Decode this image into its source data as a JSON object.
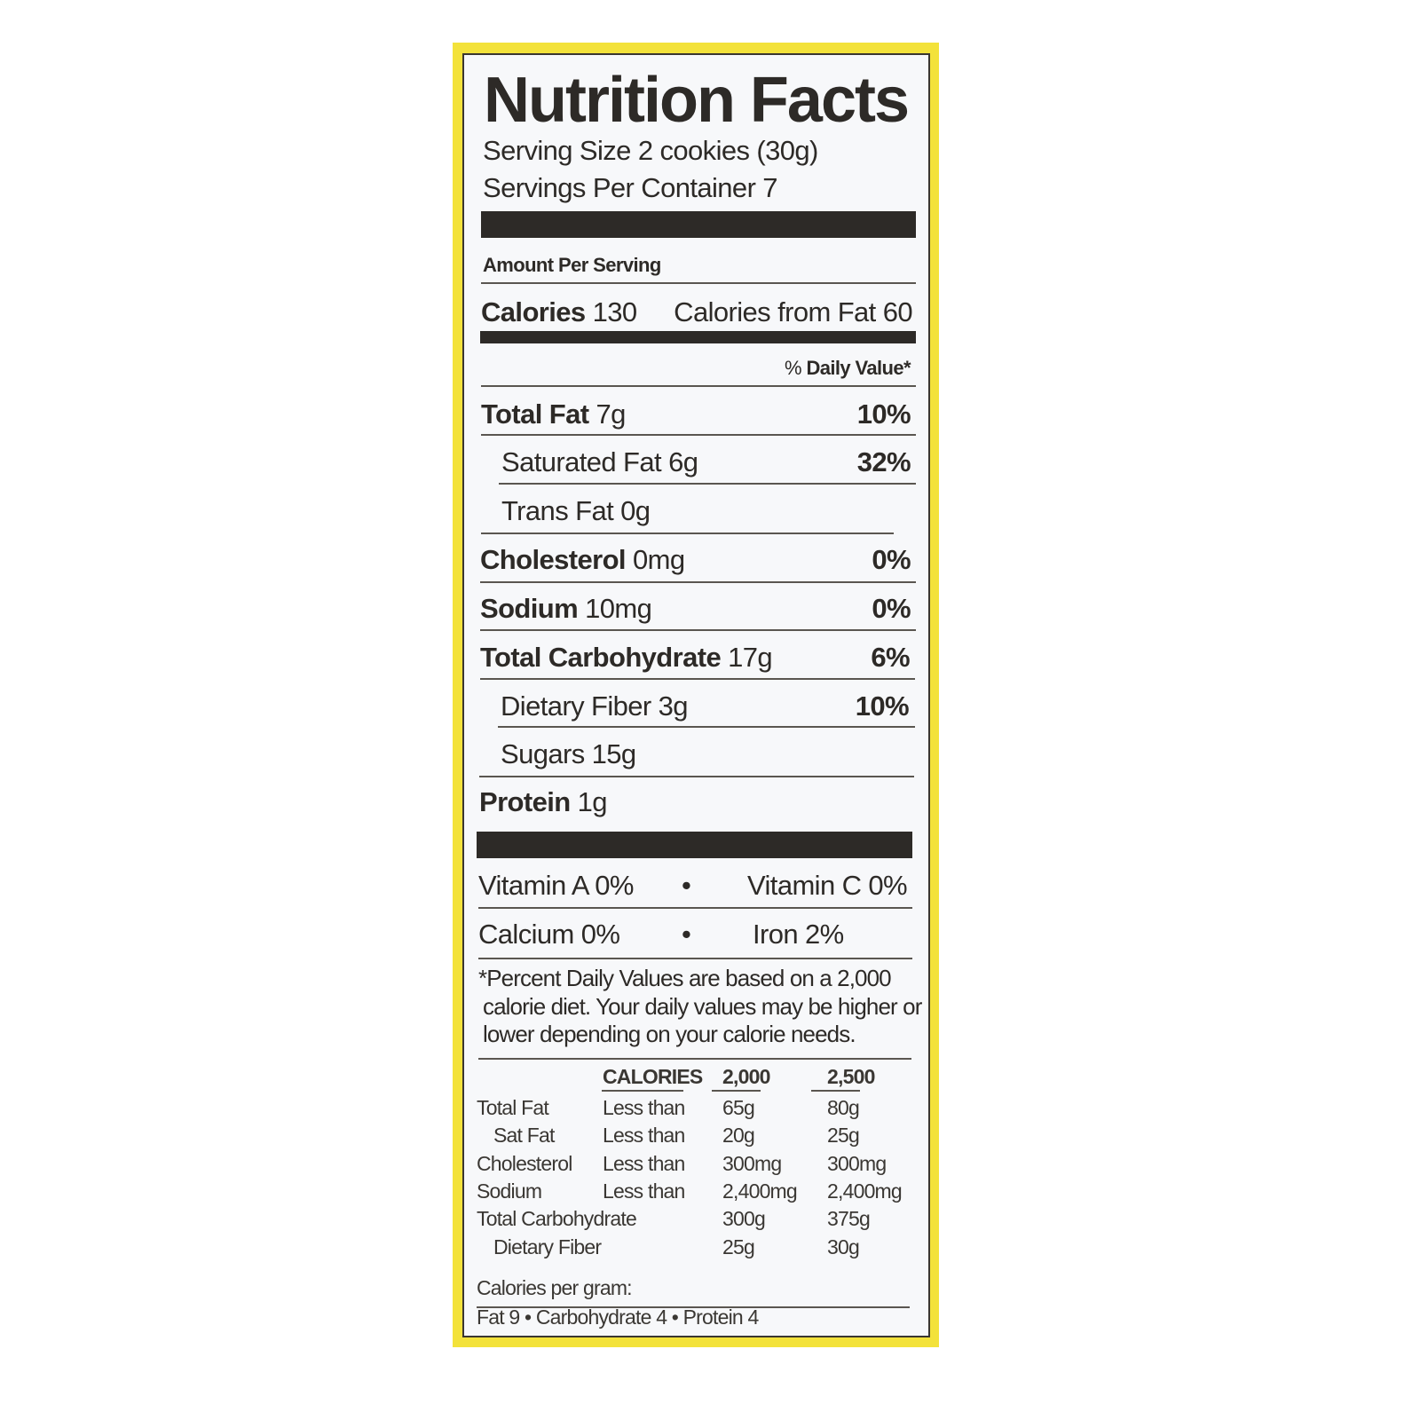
{
  "label": {
    "title": "Nutrition Facts",
    "serving_size": "Serving Size 2 cookies (30g)",
    "servings_per_container": "Servings Per Container 7",
    "amount_per_serving": "Amount Per Serving",
    "calories_label": "Calories",
    "calories_value": "130",
    "calories_from_fat": "Calories from Fat 60",
    "daily_value_header_pct": "%",
    "daily_value_header": "Daily Value*",
    "nutrients": [
      {
        "name": "Total Fat",
        "amount": "7g",
        "dv": "10%"
      },
      {
        "name": "Saturated Fat",
        "amount": "6g",
        "dv": "32%"
      },
      {
        "name": "Trans Fat",
        "amount": "0g",
        "dv": ""
      },
      {
        "name": "Cholesterol",
        "amount": "0mg",
        "dv": "0%"
      },
      {
        "name": "Sodium",
        "amount": "10mg",
        "dv": "0%"
      },
      {
        "name": "Total Carbohydrate",
        "amount": "17g",
        "dv": "6%"
      },
      {
        "name": "Dietary Fiber",
        "amount": "3g",
        "dv": "10%"
      },
      {
        "name": "Sugars",
        "amount": "15g",
        "dv": ""
      },
      {
        "name": "Protein",
        "amount": "1g",
        "dv": ""
      }
    ],
    "vitamins": {
      "vitamin_a": "Vitamin A 0%",
      "vitamin_c": "Vitamin C 0%",
      "calcium": "Calcium 0%",
      "iron": "Iron 2%",
      "bullet": "•"
    },
    "footnote": [
      "*Percent Daily Values are based on a 2,000",
      "calorie diet. Your daily values may be higher or",
      "lower depending on your calorie needs."
    ],
    "dv_table": {
      "headers": [
        "CALORIES",
        "2,000",
        "2,500"
      ],
      "rows": [
        {
          "nutrient": "Total Fat",
          "qualifier": "Less than",
          "c2000": "65g",
          "c2500": "80g"
        },
        {
          "nutrient": "Sat Fat",
          "qualifier": "Less than",
          "c2000": "20g",
          "c2500": "25g"
        },
        {
          "nutrient": "Cholesterol",
          "qualifier": "Less than",
          "c2000": "300mg",
          "c2500": "300mg"
        },
        {
          "nutrient": "Sodium",
          "qualifier": "Less than",
          "c2000": "2,400mg",
          "c2500": "2,400mg"
        },
        {
          "nutrient": "Total Carbohydrate",
          "qualifier": "",
          "c2000": "300g",
          "c2500": "375g"
        },
        {
          "nutrient": "Dietary Fiber",
          "qualifier": "",
          "c2000": "25g",
          "c2500": "30g"
        }
      ]
    },
    "calories_per_gram": "Calories per gram:",
    "calories_per_gram_values": "Fat 9 • Carbohydrate 4 • Protein 4"
  },
  "colors": {
    "border": "#f3e23a",
    "ink": "#2d2a27",
    "panel": "#f7f8fa"
  }
}
